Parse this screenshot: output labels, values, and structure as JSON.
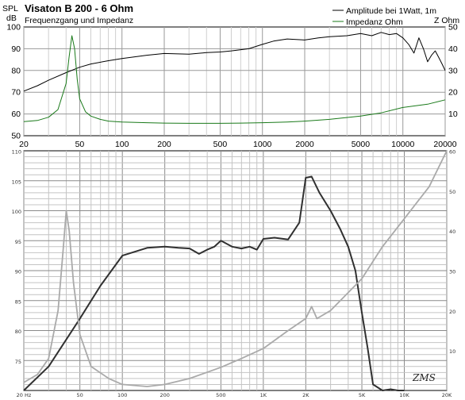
{
  "top_chart": {
    "title": "Visaton B 200 - 6 Ohm",
    "subtitle": "Frequenzgang und Impedanz",
    "y_left_label_1": "SPL",
    "y_left_label_2": "dB",
    "y_right_label": "Z  Ohm",
    "legend": [
      {
        "label": "Amplitude bei 1Watt, 1m",
        "color": "#000000"
      },
      {
        "label": "Impedanz  Ohm",
        "color": "#1a7a1a"
      }
    ]
  },
  "bottom_chart": {
    "signature": "ZMS"
  },
  "chart_data": [
    {
      "type": "line",
      "title": "Visaton B 200 - 6 Ohm",
      "subtitle": "Frequenzgang und Impedanz",
      "xscale": "log",
      "xlim": [
        20,
        20000
      ],
      "x_ticks": [
        20,
        50,
        100,
        200,
        500,
        1000,
        2000,
        5000,
        10000,
        20000
      ],
      "x_tick_labels": [
        "20",
        "50",
        "100",
        "200",
        "500",
        "1000",
        "2000",
        "5000",
        "10000",
        "20000"
      ],
      "ylim": [
        50,
        100
      ],
      "y_ticks": [
        50,
        60,
        70,
        80,
        90,
        100
      ],
      "y_tick_labels": [
        "50",
        "60",
        "70",
        "80",
        "90",
        "100"
      ],
      "y2lim": [
        0,
        50
      ],
      "y2_ticks": [
        10,
        20,
        30,
        40,
        50
      ],
      "y2_tick_labels": [
        "10",
        "20",
        "30",
        "40",
        "50"
      ],
      "grid": true,
      "series": [
        {
          "name": "Amplitude bei 1Watt, 1m",
          "axis": "left",
          "color": "#000000",
          "x": [
            20,
            25,
            30,
            40,
            50,
            60,
            80,
            100,
            150,
            200,
            300,
            400,
            500,
            600,
            800,
            1000,
            1200,
            1500,
            2000,
            2500,
            3000,
            4000,
            5000,
            6000,
            7000,
            8000,
            9000,
            10000,
            11000,
            12000,
            13000,
            14000,
            15000,
            16000,
            17000,
            18000,
            19000,
            20000
          ],
          "y": [
            70.5,
            73,
            75.5,
            79,
            81.5,
            83,
            84.5,
            85.5,
            87,
            87.8,
            87.5,
            88.2,
            88.5,
            89,
            90,
            92,
            93.5,
            94.5,
            94,
            95,
            95.5,
            96,
            97,
            96,
            97.5,
            96.5,
            97,
            95,
            92,
            88,
            95,
            90,
            84,
            87,
            89,
            86,
            83,
            80
          ]
        },
        {
          "name": "Impedanz  Ohm",
          "axis": "right",
          "color": "#1a7a1a",
          "x": [
            20,
            25,
            30,
            35,
            40,
            42,
            44,
            46,
            48,
            50,
            55,
            60,
            70,
            80,
            100,
            150,
            200,
            300,
            500,
            700,
            1000,
            1500,
            2000,
            3000,
            5000,
            7000,
            10000,
            15000,
            20000
          ],
          "y": [
            6.5,
            7,
            8.5,
            12,
            24,
            36,
            46,
            40,
            26,
            17,
            11,
            9,
            7.5,
            6.7,
            6.3,
            6,
            5.8,
            5.7,
            5.7,
            5.8,
            6,
            6.3,
            6.7,
            7.5,
            9,
            10.5,
            13,
            14.5,
            16.5
          ]
        }
      ]
    },
    {
      "type": "line",
      "xscale": "log",
      "xlim": [
        20,
        20000
      ],
      "x_ticks": [
        20,
        50,
        100,
        200,
        500,
        1000,
        2000,
        5000,
        10000,
        20000
      ],
      "x_tick_labels": [
        "20 Hz",
        "50",
        "100",
        "200",
        "500",
        "1K",
        "2K",
        "5K",
        "10K",
        "20K"
      ],
      "ylim": [
        70,
        110
      ],
      "y_ticks": [
        75,
        80,
        85,
        90,
        95,
        100,
        105,
        110
      ],
      "y_tick_labels": [
        "75",
        "80",
        "85",
        "90",
        "95",
        "100",
        "105",
        "110"
      ],
      "y2lim": [
        0,
        60
      ],
      "y2_ticks": [
        10,
        20,
        30,
        40,
        50,
        60
      ],
      "y2_tick_labels": [
        "10",
        "20",
        "30",
        "40",
        "50",
        "60"
      ],
      "grid": true,
      "series": [
        {
          "name": "",
          "axis": "left",
          "color": "#303030",
          "x": [
            20,
            30,
            40,
            50,
            70,
            100,
            150,
            200,
            250,
            300,
            350,
            400,
            450,
            500,
            600,
            700,
            800,
            900,
            1000,
            1200,
            1500,
            1800,
            2000,
            2200,
            2500,
            3000,
            3500,
            4000,
            4500,
            5000,
            5500,
            6000,
            7000,
            8000,
            9000,
            10000
          ],
          "y": [
            68,
            74,
            78.5,
            82,
            87.5,
            92.5,
            93.8,
            94,
            93.8,
            93.7,
            92.8,
            93.5,
            94,
            95,
            94,
            93.7,
            94,
            93.5,
            95.3,
            95.5,
            95.2,
            98,
            105.5,
            105.7,
            103,
            100,
            97,
            94,
            90,
            83,
            77,
            71,
            70,
            70.2,
            69.5,
            70
          ]
        },
        {
          "name": "",
          "axis": "right",
          "color": "#aaaaaa",
          "x": [
            20,
            25,
            30,
            35,
            38,
            40,
            42,
            45,
            50,
            60,
            80,
            100,
            150,
            200,
            300,
            500,
            700,
            1000,
            1500,
            2000,
            2200,
            2400,
            3000,
            5000,
            7000,
            10000,
            15000,
            20000
          ],
          "y": [
            2,
            4,
            8,
            20,
            35,
            45,
            40,
            27,
            14,
            6,
            3,
            1.5,
            1,
            1.5,
            3,
            5.8,
            8,
            10.5,
            15,
            18,
            21,
            18,
            20,
            28,
            36,
            43,
            51,
            60
          ]
        }
      ]
    }
  ]
}
